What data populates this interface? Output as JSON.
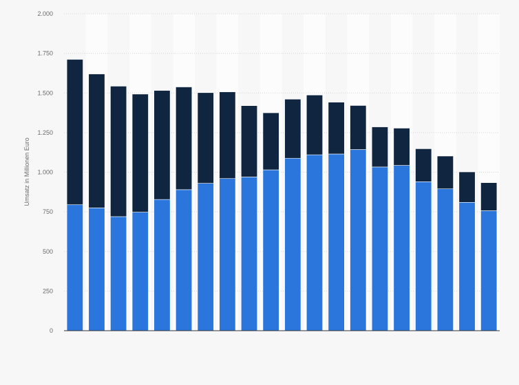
{
  "chart_data": {
    "type": "bar",
    "stacked": true,
    "ylabel": "Umsatz in Millionen Euro",
    "ylim": [
      0,
      2000
    ],
    "yticks": [
      0,
      250,
      500,
      750,
      1000,
      1250,
      1500,
      1750,
      2000
    ],
    "ytick_labels": [
      "0",
      "250",
      "500",
      "750",
      "1.000",
      "1.250",
      "1.500",
      "1.750",
      "2.000"
    ],
    "grid": true,
    "bar_count": 20,
    "series": [
      {
        "color": "#2a76dd",
        "values": [
          795,
          775,
          720,
          748,
          828,
          890,
          930,
          960,
          970,
          1015,
          1088,
          1110,
          1115,
          1143,
          1033,
          1043,
          940,
          895,
          810,
          757
        ]
      },
      {
        "color": "#10253f",
        "values": [
          917,
          845,
          823,
          745,
          688,
          648,
          572,
          547,
          450,
          360,
          373,
          377,
          327,
          278,
          253,
          235,
          208,
          207,
          192,
          177
        ]
      }
    ]
  }
}
